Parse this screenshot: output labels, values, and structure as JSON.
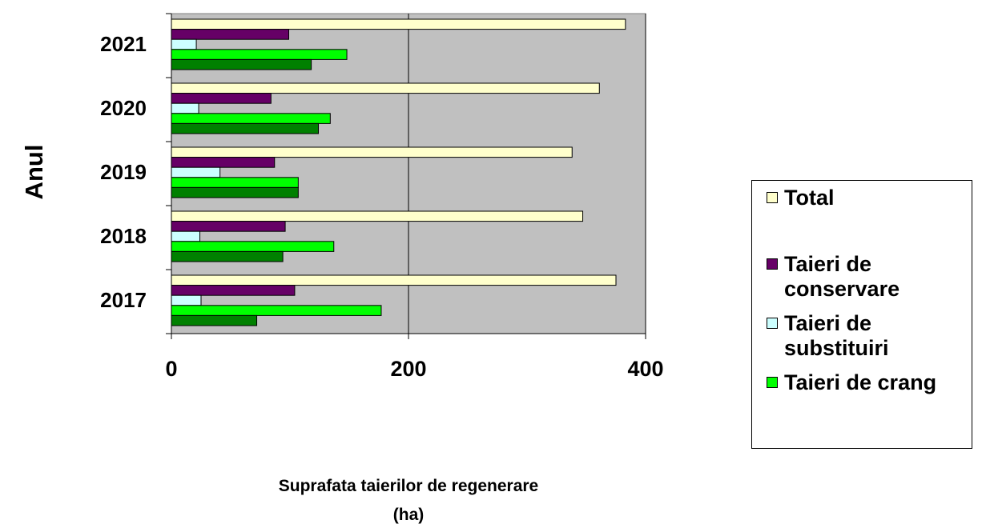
{
  "chart_data": {
    "type": "bar",
    "orientation": "horizontal",
    "x_label": "Suprafata taierilor de regenerare (ha)",
    "y_label": "Anul",
    "categories": [
      "2017",
      "2018",
      "2019",
      "2020",
      "2021"
    ],
    "series": [
      {
        "name": "Total",
        "color": "#ffffcc",
        "values": [
          375,
          347,
          338,
          361,
          383
        ]
      },
      {
        "name": "Taieri de conservare",
        "color": "#660066",
        "values": [
          104,
          96,
          87,
          84,
          99
        ]
      },
      {
        "name": "Taieri de substituiri",
        "color": "#ccffff",
        "values": [
          25,
          24,
          41,
          23,
          21
        ]
      },
      {
        "name": "Taieri de crang",
        "color": "#00ff00",
        "values": [
          177,
          137,
          107,
          134,
          148
        ]
      },
      {
        "color": "#008000",
        "values": [
          72,
          94,
          107,
          124,
          118
        ]
      }
    ],
    "xlim": [
      0,
      400
    ],
    "xticks": [
      0,
      200,
      400
    ],
    "grid": true,
    "plot_background": "#c0c0c0",
    "legend": "right"
  }
}
